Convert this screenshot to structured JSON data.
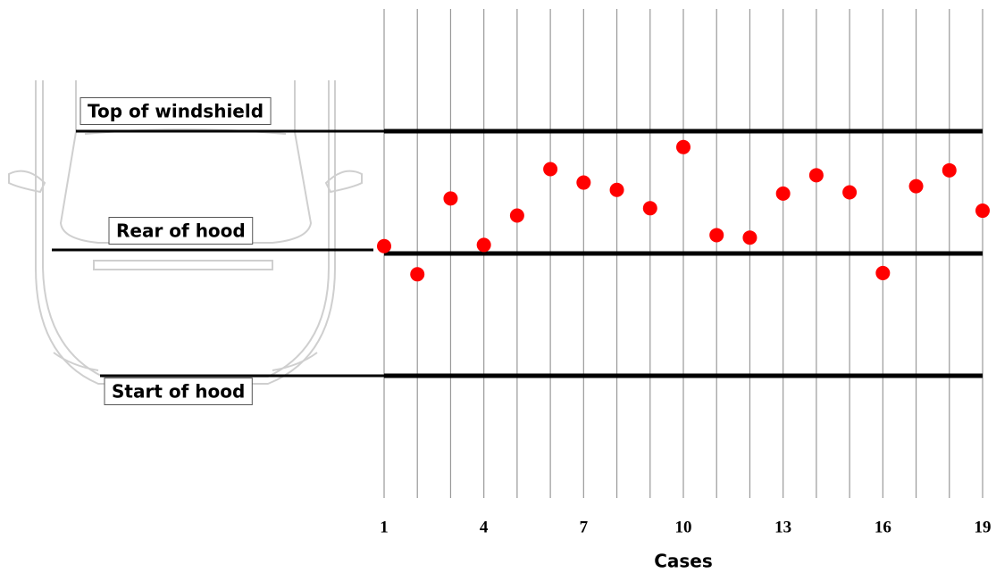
{
  "chart_data": {
    "type": "scatter",
    "xlabel": "Cases",
    "x": [
      1,
      2,
      3,
      4,
      5,
      6,
      7,
      8,
      9,
      10,
      11,
      12,
      13,
      14,
      15,
      16,
      17,
      18,
      19
    ],
    "values": [
      1.06,
      0.83,
      1.45,
      1.07,
      1.31,
      1.69,
      1.58,
      1.52,
      1.37,
      1.87,
      1.15,
      1.13,
      1.49,
      1.64,
      1.5,
      0.84,
      1.55,
      1.68,
      1.35
    ],
    "color": "#ff0000",
    "xlim": [
      1,
      19
    ],
    "xticks": [
      1,
      4,
      7,
      10,
      13,
      16,
      19
    ],
    "ylim": [
      -1,
      3
    ],
    "yticks": [
      {
        "value": 0,
        "label": "Start of hood"
      },
      {
        "value": 1,
        "label": "Rear of hood"
      },
      {
        "value": 2,
        "label": "Top of windshield"
      }
    ]
  }
}
